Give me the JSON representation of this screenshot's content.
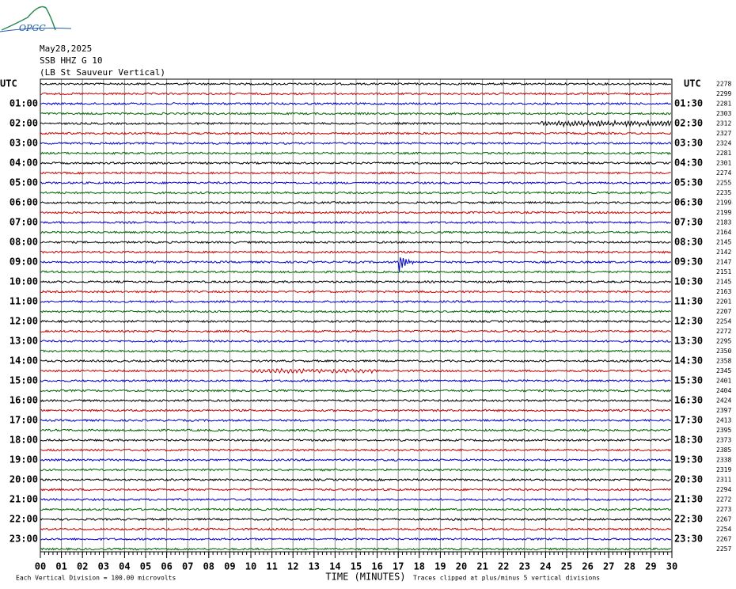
{
  "header": {
    "logo": "OPGC",
    "date": "May28,2025",
    "station": "SSB HHZ G 10",
    "description": "(LB St Sauveur Vertical)"
  },
  "chart_data": {
    "type": "helicorder",
    "left_label": "UTC",
    "right_label": "UTC",
    "left_times": [
      "01:00",
      "02:00",
      "03:00",
      "04:00",
      "05:00",
      "06:00",
      "07:00",
      "08:00",
      "09:00",
      "10:00",
      "11:00",
      "12:00",
      "13:00",
      "14:00",
      "15:00",
      "16:00",
      "17:00",
      "18:00",
      "19:00",
      "20:00",
      "21:00",
      "22:00",
      "23:00"
    ],
    "right_times": [
      "01:30",
      "02:30",
      "03:30",
      "04:30",
      "05:30",
      "06:30",
      "07:30",
      "08:30",
      "09:30",
      "10:30",
      "11:30",
      "12:30",
      "13:30",
      "14:30",
      "15:30",
      "16:30",
      "17:30",
      "18:30",
      "19:30",
      "20:30",
      "21:30",
      "22:30",
      "23:30"
    ],
    "trace_values": [
      2278,
      2299,
      2281,
      2303,
      2312,
      2327,
      2324,
      2281,
      2301,
      2274,
      2255,
      2235,
      2199,
      2199,
      2183,
      2164,
      2145,
      2142,
      2147,
      2151,
      2145,
      2163,
      2201,
      2207,
      2254,
      2272,
      2295,
      2350,
      2358,
      2345,
      2401,
      2404,
      2424,
      2397,
      2413,
      2395,
      2373,
      2385,
      2338,
      2319,
      2311,
      2294,
      2272,
      2273,
      2267,
      2254,
      2267,
      2257
    ],
    "trace_colors": [
      "#000000",
      "#cc0000",
      "#0000cc",
      "#006600"
    ],
    "xlim": [
      0,
      30
    ],
    "xticks": [
      {
        "value": 0,
        "label": "00"
      },
      {
        "value": 1,
        "label": "01"
      },
      {
        "value": 2,
        "label": "02"
      },
      {
        "value": 3,
        "label": "03"
      },
      {
        "value": 4,
        "label": "04"
      },
      {
        "value": 5,
        "label": "05"
      },
      {
        "value": 6,
        "label": "06"
      },
      {
        "value": 7,
        "label": "07"
      },
      {
        "value": 8,
        "label": "08"
      },
      {
        "value": 9,
        "label": "09"
      },
      10,
      11,
      12,
      13,
      14,
      15,
      16,
      17,
      18,
      19,
      20,
      21,
      22,
      23,
      24,
      25,
      26,
      27,
      28,
      29,
      30
    ],
    "xlabel": "TIME (MINUTES)",
    "footer_left": "Each Vertical Division =  100.00 microvolts",
    "footer_right": "Traces clipped at plus/minus 5 vertical divisions"
  }
}
